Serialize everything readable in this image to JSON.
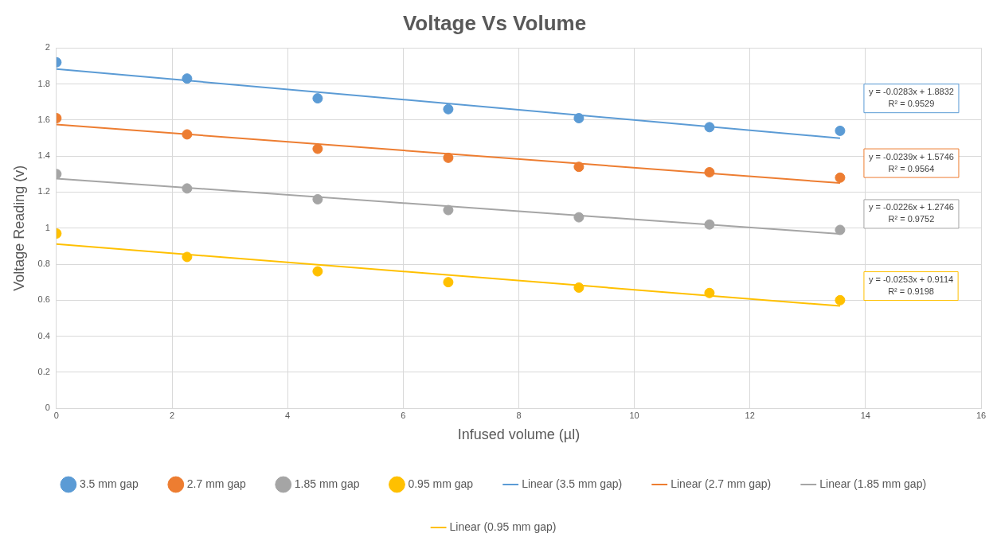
{
  "chart_data": {
    "type": "scatter",
    "title": "Voltage Vs Volume",
    "xlabel": "Infused volume (µl)",
    "ylabel": "Voltage Reading (v)",
    "x": [
      0,
      2.26,
      4.52,
      6.78,
      9.04,
      11.3,
      13.56
    ],
    "xlim": [
      0,
      16
    ],
    "xticks": [
      0,
      2,
      4,
      6,
      8,
      10,
      12,
      14,
      16
    ],
    "ylim": [
      0,
      2
    ],
    "yticks": [
      0,
      0.2,
      0.4,
      0.6,
      0.8,
      1,
      1.2,
      1.4,
      1.6,
      1.8,
      2
    ],
    "grid": true,
    "legend": "bottom",
    "marker": "circle",
    "series": [
      {
        "name": "3.5 mm gap",
        "color": "#5b9bd5",
        "values": [
          1.92,
          1.83,
          1.72,
          1.66,
          1.61,
          1.56,
          1.54
        ]
      },
      {
        "name": "2.7 mm gap",
        "color": "#ed7d31",
        "values": [
          1.61,
          1.52,
          1.44,
          1.39,
          1.34,
          1.31,
          1.28
        ]
      },
      {
        "name": "1.85 mm gap",
        "color": "#a5a5a5",
        "values": [
          1.3,
          1.22,
          1.16,
          1.1,
          1.06,
          1.02,
          0.99
        ]
      },
      {
        "name": "0.95 mm gap",
        "color": "#ffc000",
        "values": [
          0.97,
          0.84,
          0.76,
          0.7,
          0.67,
          0.64,
          0.6
        ]
      },
      {
        "name": "Linear (3.5 mm gap)",
        "type": "line",
        "marker": "none",
        "color": "#5b9bd5",
        "values": [
          1.883,
          null,
          null,
          null,
          null,
          null,
          1.499
        ]
      },
      {
        "name": "Linear (2.7 mm gap)",
        "type": "line",
        "marker": "none",
        "color": "#ed7d31",
        "values": [
          1.575,
          null,
          null,
          null,
          null,
          null,
          1.25
        ]
      },
      {
        "name": "Linear (1.85 mm gap)",
        "type": "line",
        "marker": "none",
        "color": "#a5a5a5",
        "values": [
          1.275,
          null,
          null,
          null,
          null,
          null,
          0.968
        ]
      },
      {
        "name": "Linear (0.95 mm gap)",
        "type": "line",
        "marker": "none",
        "color": "#ffc000",
        "values": [
          0.911,
          null,
          null,
          null,
          null,
          null,
          0.568
        ]
      }
    ],
    "annotations": [
      "y = -0.0283x + 1.8832\nR² = 0.9529",
      "y = -0.0239x + 1.5746\nR² = 0.9564",
      "y = -0.0226x + 1.2746\nR² = 0.9752",
      "y = -0.0253x + 0.9114\nR² = 0.9198"
    ]
  }
}
